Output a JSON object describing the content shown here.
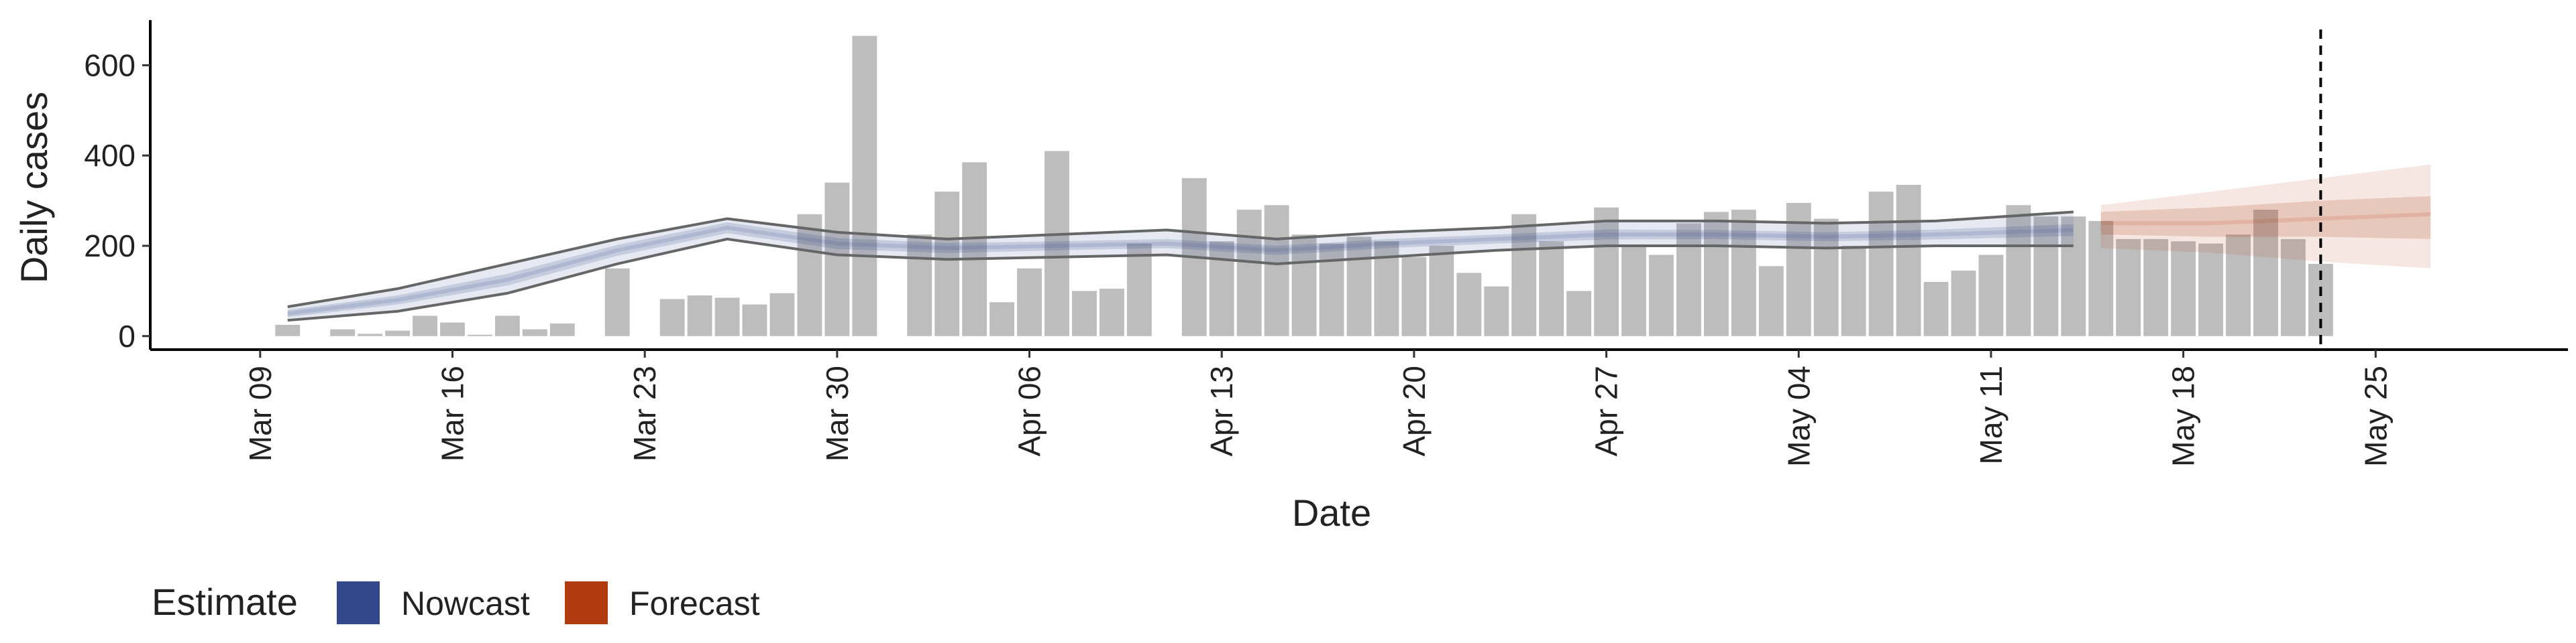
{
  "chart_data": {
    "type": "bar",
    "x_label": "Date",
    "y_label": "Daily cases",
    "color": "#bdbdbd",
    "x": [
      "Mar 10",
      "Mar 11",
      "Mar 12",
      "Mar 13",
      "Mar 14",
      "Mar 15",
      "Mar 16",
      "Mar 17",
      "Mar 18",
      "Mar 19",
      "Mar 20",
      "Mar 21",
      "Mar 22",
      "Mar 23",
      "Mar 24",
      "Mar 25",
      "Mar 26",
      "Mar 27",
      "Mar 28",
      "Mar 29",
      "Mar 30",
      "Mar 31",
      "Apr 01",
      "Apr 02",
      "Apr 03",
      "Apr 04",
      "Apr 05",
      "Apr 06",
      "Apr 07",
      "Apr 08",
      "Apr 09",
      "Apr 10",
      "Apr 11",
      "Apr 12",
      "Apr 13",
      "Apr 14",
      "Apr 15",
      "Apr 16",
      "Apr 17",
      "Apr 18",
      "Apr 19",
      "Apr 20",
      "Apr 21",
      "Apr 22",
      "Apr 23",
      "Apr 24",
      "Apr 25",
      "Apr 26",
      "Apr 27",
      "Apr 28",
      "Apr 29",
      "Apr 30",
      "May 01",
      "May 02",
      "May 03",
      "May 04",
      "May 05",
      "May 06",
      "May 07",
      "May 08",
      "May 09",
      "May 10",
      "May 11",
      "May 12",
      "May 13",
      "May 14",
      "May 15",
      "May 16",
      "May 17",
      "May 18",
      "May 19",
      "May 20",
      "May 21",
      "May 22",
      "May 23"
    ],
    "values": [
      25,
      0,
      15,
      5,
      12,
      45,
      30,
      3,
      45,
      15,
      28,
      0,
      150,
      0,
      82,
      90,
      85,
      70,
      95,
      270,
      340,
      665,
      0,
      225,
      320,
      385,
      75,
      150,
      410,
      100,
      105,
      205,
      0,
      350,
      210,
      280,
      290,
      225,
      205,
      220,
      210,
      175,
      200,
      140,
      110,
      270,
      210,
      100,
      285,
      200,
      180,
      250,
      275,
      280,
      155,
      295,
      260,
      200,
      320,
      335,
      120,
      145,
      180,
      290,
      265,
      265,
      255,
      215,
      215,
      210,
      205,
      225,
      280,
      215,
      160
    ],
    "xlim": [
      "Mar 05",
      "Jun 01"
    ],
    "xticks": [
      "Mar 09",
      "Mar 16",
      "Mar 23",
      "Mar 30",
      "Apr 06",
      "Apr 13",
      "Apr 20",
      "Apr 27",
      "May 04",
      "May 11",
      "May 18",
      "May 25"
    ],
    "ylim": [
      -30,
      700
    ],
    "yticks": [
      0,
      200,
      400,
      600
    ],
    "vline": "May 23",
    "legend_title": "Estimate",
    "estimates": [
      {
        "name": "Nowcast",
        "color": "#33488a",
        "outline": true,
        "x": [
          "Mar 10",
          "Mar 14",
          "Mar 18",
          "Mar 22",
          "Mar 26",
          "Mar 30",
          "Apr 03",
          "Apr 07",
          "Apr 11",
          "Apr 15",
          "Apr 19",
          "Apr 23",
          "Apr 27",
          "May 01",
          "May 05",
          "May 09",
          "May 14"
        ],
        "median": [
          50,
          80,
          125,
          190,
          240,
          205,
          195,
          200,
          205,
          190,
          205,
          215,
          225,
          225,
          220,
          225,
          235
        ],
        "lower_50": [
          42,
          70,
          112,
          178,
          228,
          193,
          184,
          190,
          195,
          180,
          195,
          205,
          214,
          215,
          210,
          214,
          222
        ],
        "upper_50": [
          58,
          90,
          138,
          202,
          252,
          217,
          206,
          210,
          215,
          200,
          215,
          225,
          236,
          235,
          230,
          236,
          248
        ],
        "lower_90": [
          35,
          55,
          95,
          160,
          215,
          180,
          170,
          175,
          180,
          160,
          175,
          190,
          200,
          200,
          195,
          200,
          200
        ],
        "upper_90": [
          65,
          105,
          160,
          215,
          260,
          230,
          215,
          225,
          235,
          215,
          230,
          240,
          255,
          255,
          250,
          255,
          275
        ]
      },
      {
        "name": "Forecast",
        "color": "#b13b0e",
        "outline": false,
        "x": [
          "May 15",
          "May 19",
          "May 23",
          "May 27"
        ],
        "median": [
          250,
          250,
          260,
          270
        ],
        "lower_50": [
          225,
          220,
          220,
          215
        ],
        "upper_50": [
          275,
          285,
          300,
          310
        ],
        "lower_90": [
          195,
          185,
          165,
          150
        ],
        "upper_90": [
          290,
          320,
          350,
          380
        ]
      }
    ]
  }
}
